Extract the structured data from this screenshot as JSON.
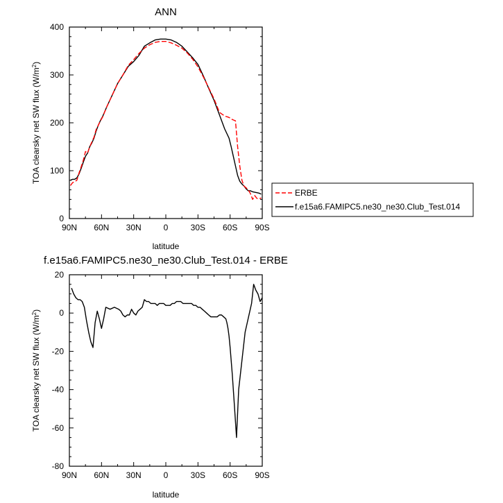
{
  "chart_data": [
    {
      "type": "line",
      "title": "ANN",
      "xlabel": "latitude",
      "ylabel": "TOA clearsky net SW flux (W/m²)",
      "ylabel_main": "TOA clearsky net SW flux (W/m",
      "ylabel_sup": "2",
      "ylabel_end": ")",
      "xlim": [
        90,
        -90
      ],
      "ylim": [
        0,
        400
      ],
      "xticks": [
        90,
        60,
        30,
        0,
        -30,
        -60,
        -90
      ],
      "xtick_labels": [
        "90N",
        "60N",
        "30N",
        "0",
        "30S",
        "60S",
        "90S"
      ],
      "yticks": [
        0,
        100,
        200,
        300,
        400
      ],
      "ytick_labels": [
        "0",
        "100",
        "200",
        "300",
        "400"
      ],
      "grid": false,
      "legend_placement": "right",
      "series": [
        {
          "name": "ERBE",
          "color": "#ff0000",
          "dash": "dashed",
          "x": [
            89,
            87,
            85,
            83,
            81,
            79,
            77,
            75,
            73,
            71,
            69,
            67,
            65,
            63,
            61,
            59,
            55,
            50,
            45,
            40,
            35,
            30,
            25,
            20,
            15,
            10,
            5,
            0,
            -5,
            -10,
            -15,
            -20,
            -25,
            -30,
            -35,
            -40,
            -45,
            -50,
            -55,
            -58,
            -60,
            -61,
            -63,
            -65,
            -67,
            -69,
            -71,
            -73,
            -75,
            -77,
            -79,
            -81,
            -83,
            -85,
            -87,
            -89
          ],
          "y": [
            69,
            75,
            77,
            80,
            95,
            108,
            122,
            140,
            137,
            150,
            160,
            170,
            186,
            195,
            204,
            212,
            234,
            258,
            282,
            300,
            320,
            332,
            345,
            356,
            363,
            368,
            370,
            370,
            367,
            362,
            356,
            346,
            333,
            317,
            296,
            273,
            250,
            222,
            214,
            212,
            210,
            208,
            206,
            204,
            150,
            110,
            80,
            68,
            64,
            60,
            52,
            40,
            48,
            42,
            41,
            43
          ]
        },
        {
          "name": "f.e15a6.FAMIPC5.ne30_ne30.Club_Test.014",
          "color": "#000000",
          "dash": "solid",
          "x": [
            89,
            87,
            85,
            83,
            81,
            79,
            77,
            75,
            73,
            71,
            69,
            67,
            65,
            63,
            61,
            59,
            55,
            50,
            45,
            40,
            35,
            30,
            25,
            20,
            15,
            10,
            5,
            0,
            -5,
            -10,
            -15,
            -20,
            -25,
            -30,
            -35,
            -40,
            -45,
            -50,
            -55,
            -59,
            -61,
            -63,
            -65,
            -67,
            -69,
            -71,
            -73,
            -75,
            -77,
            -79,
            -81,
            -83,
            -85,
            -87,
            -89
          ],
          "y": [
            80,
            82,
            82,
            85,
            93,
            105,
            118,
            130,
            137,
            150,
            158,
            168,
            183,
            195,
            205,
            213,
            234,
            258,
            282,
            300,
            318,
            328,
            341,
            360,
            367,
            373,
            375,
            375,
            373,
            368,
            360,
            348,
            336,
            322,
            298,
            272,
            247,
            217,
            187,
            168,
            150,
            130,
            110,
            90,
            78,
            72,
            68,
            62,
            58,
            58,
            56,
            55,
            54,
            53,
            51
          ]
        }
      ]
    },
    {
      "type": "line",
      "title": "f.e15a6.FAMIPC5.ne30_ne30.Club_Test.014 - ERBE",
      "xlabel": "latitude",
      "ylabel": "TOA clearsky net SW flux (W/m²)",
      "ylabel_main": "TOA clearsky net SW flux (W/m",
      "ylabel_sup": "2",
      "ylabel_end": ")",
      "xlim": [
        90,
        -90
      ],
      "ylim": [
        -80,
        20
      ],
      "xticks": [
        90,
        60,
        30,
        0,
        -30,
        -60,
        -90
      ],
      "xtick_labels": [
        "90N",
        "60N",
        "30N",
        "0",
        "30S",
        "60S",
        "90S"
      ],
      "yticks": [
        20,
        0,
        -20,
        -40,
        -60,
        -80
      ],
      "ytick_labels": [
        "20",
        "0",
        "-20",
        "-40",
        "-60",
        "-80"
      ],
      "grid": false,
      "series": [
        {
          "color": "#000000",
          "dash": "solid",
          "x": [
            88,
            86,
            84,
            82,
            80,
            78,
            76,
            74,
            72,
            70,
            68,
            66,
            64,
            62,
            60,
            58,
            56,
            52,
            48,
            44,
            42,
            40,
            38,
            36,
            34,
            32,
            30,
            28,
            26,
            24,
            22,
            20,
            18,
            16,
            14,
            12,
            10,
            8,
            6,
            4,
            2,
            0,
            -2,
            -4,
            -6,
            -8,
            -10,
            -12,
            -14,
            -16,
            -18,
            -20,
            -22,
            -24,
            -26,
            -28,
            -30,
            -32,
            -34,
            -36,
            -38,
            -40,
            -42,
            -44,
            -46,
            -48,
            -50,
            -52,
            -54,
            -56,
            -57,
            -58,
            -59,
            -60,
            -62,
            -64,
            -66,
            -68,
            -70,
            -72,
            -74,
            -76,
            -78,
            -80,
            -82,
            -84,
            -86,
            -88,
            -90
          ],
          "y": [
            13,
            10,
            8,
            7,
            7,
            6,
            3,
            -4,
            -10,
            -15,
            -18,
            -5,
            1,
            -3,
            -8,
            -3,
            3,
            2,
            3,
            2,
            1,
            -1,
            -2,
            -1,
            -1,
            2,
            0,
            -1,
            1,
            2,
            3,
            7,
            6,
            6,
            5,
            5,
            5,
            4,
            5,
            5,
            5,
            4,
            4,
            4,
            5,
            5,
            6,
            6,
            6,
            5,
            5,
            5,
            5,
            5,
            4,
            4,
            3,
            3,
            2,
            1,
            0,
            -1,
            -2,
            -2,
            -2,
            -2,
            -1,
            -1,
            -2,
            -3,
            -5,
            -8,
            -12,
            -18,
            -32,
            -48,
            -65,
            -40,
            -30,
            -20,
            -10,
            -5,
            0,
            5,
            15,
            12,
            10,
            6,
            8
          ]
        }
      ]
    }
  ]
}
